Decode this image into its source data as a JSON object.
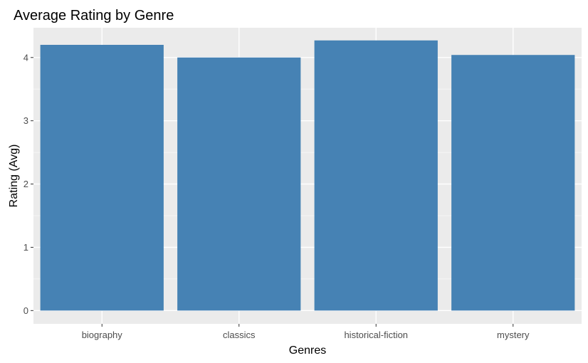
{
  "colors": {
    "panel_background": "#ebebeb",
    "grid_major": "#ffffff",
    "grid_minor": "#f5f5f5",
    "bar_fill": "#4682b4",
    "tick_color": "#333333"
  },
  "chart_data": {
    "type": "bar",
    "title": "Average Rating by Genre",
    "xlabel": "Genres",
    "ylabel": "Rating (Avg)",
    "categories": [
      "biography",
      "classics",
      "historical-fiction",
      "mystery"
    ],
    "values": [
      4.2,
      4.0,
      4.27,
      4.04
    ],
    "yticks": [
      0,
      1,
      2,
      3,
      4
    ],
    "ylim": [
      -0.21,
      4.47
    ],
    "grid": true,
    "legend": "none"
  }
}
